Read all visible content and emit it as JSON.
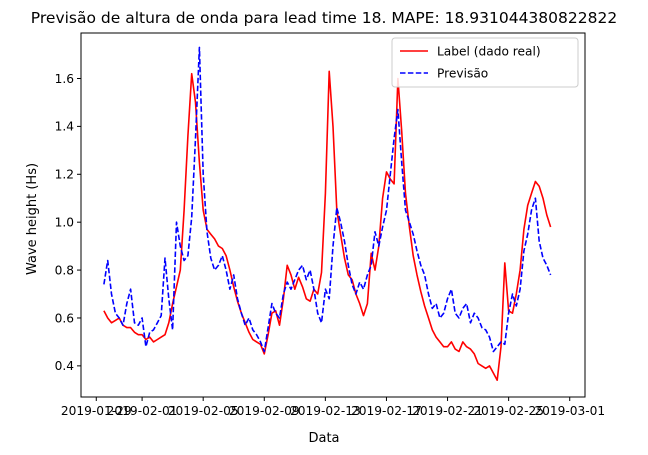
{
  "chart_data": {
    "type": "line",
    "title": "Previsão de altura de onda para lead time 18. MAPE: 18.931044380822822",
    "xlabel": "Data",
    "ylabel": "Wave height (Hs)",
    "x_range": [
      "2019-01-28",
      "2019-03-02"
    ],
    "ylim": [
      0.27,
      1.79
    ],
    "x_ticks": [
      "2019-01-29",
      "2019-02-01",
      "2019-02-05",
      "2019-02-09",
      "2019-02-13",
      "2019-02-17",
      "2019-02-21",
      "2019-02-25",
      "2019-03-01"
    ],
    "y_ticks": [
      0.4,
      0.6,
      0.8,
      1.0,
      1.2,
      1.4,
      1.6
    ],
    "grid": false,
    "legend_position": "top-right",
    "series": [
      {
        "name": "Label (dado real)",
        "color": "#ff0000",
        "style": "solid",
        "points": [
          [
            "2019-01-29 12:00",
            0.63
          ],
          [
            "2019-01-29 18:00",
            0.6
          ],
          [
            "2019-01-30 00:00",
            0.58
          ],
          [
            "2019-01-30 06:00",
            0.59
          ],
          [
            "2019-01-30 12:00",
            0.6
          ],
          [
            "2019-01-30 18:00",
            0.57
          ],
          [
            "2019-01-31 00:00",
            0.56
          ],
          [
            "2019-01-31 06:00",
            0.56
          ],
          [
            "2019-01-31 12:00",
            0.54
          ],
          [
            "2019-01-31 18:00",
            0.53
          ],
          [
            "2019-02-01 00:00",
            0.53
          ],
          [
            "2019-02-01 06:00",
            0.51
          ],
          [
            "2019-02-01 12:00",
            0.52
          ],
          [
            "2019-02-01 18:00",
            0.5
          ],
          [
            "2019-02-02 00:00",
            0.51
          ],
          [
            "2019-02-02 06:00",
            0.52
          ],
          [
            "2019-02-02 12:00",
            0.53
          ],
          [
            "2019-02-02 18:00",
            0.58
          ],
          [
            "2019-02-03 00:00",
            0.66
          ],
          [
            "2019-02-03 06:00",
            0.73
          ],
          [
            "2019-02-03 12:00",
            0.8
          ],
          [
            "2019-02-03 18:00",
            1.05
          ],
          [
            "2019-02-04 00:00",
            1.36
          ],
          [
            "2019-02-04 06:00",
            1.62
          ],
          [
            "2019-02-04 12:00",
            1.5
          ],
          [
            "2019-02-04 18:00",
            1.25
          ],
          [
            "2019-02-05 00:00",
            1.05
          ],
          [
            "2019-02-05 06:00",
            0.97
          ],
          [
            "2019-02-05 12:00",
            0.95
          ],
          [
            "2019-02-05 18:00",
            0.93
          ],
          [
            "2019-02-06 00:00",
            0.9
          ],
          [
            "2019-02-06 06:00",
            0.89
          ],
          [
            "2019-02-06 12:00",
            0.86
          ],
          [
            "2019-02-06 18:00",
            0.8
          ],
          [
            "2019-02-07 00:00",
            0.73
          ],
          [
            "2019-02-07 06:00",
            0.67
          ],
          [
            "2019-02-07 12:00",
            0.62
          ],
          [
            "2019-02-07 18:00",
            0.58
          ],
          [
            "2019-02-08 00:00",
            0.54
          ],
          [
            "2019-02-08 06:00",
            0.51
          ],
          [
            "2019-02-08 12:00",
            0.5
          ],
          [
            "2019-02-08 18:00",
            0.49
          ],
          [
            "2019-02-09 00:00",
            0.45
          ],
          [
            "2019-02-09 06:00",
            0.53
          ],
          [
            "2019-02-09 12:00",
            0.62
          ],
          [
            "2019-02-09 18:00",
            0.63
          ],
          [
            "2019-02-10 00:00",
            0.57
          ],
          [
            "2019-02-10 06:00",
            0.68
          ],
          [
            "2019-02-10 12:00",
            0.82
          ],
          [
            "2019-02-10 18:00",
            0.78
          ],
          [
            "2019-02-11 00:00",
            0.72
          ],
          [
            "2019-02-11 06:00",
            0.77
          ],
          [
            "2019-02-11 12:00",
            0.73
          ],
          [
            "2019-02-11 18:00",
            0.68
          ],
          [
            "2019-02-12 00:00",
            0.67
          ],
          [
            "2019-02-12 06:00",
            0.72
          ],
          [
            "2019-02-12 12:00",
            0.7
          ],
          [
            "2019-02-12 18:00",
            0.79
          ],
          [
            "2019-02-13 00:00",
            1.12
          ],
          [
            "2019-02-13 06:00",
            1.63
          ],
          [
            "2019-02-13 12:00",
            1.4
          ],
          [
            "2019-02-13 18:00",
            1.05
          ],
          [
            "2019-02-14 00:00",
            0.95
          ],
          [
            "2019-02-14 06:00",
            0.85
          ],
          [
            "2019-02-14 12:00",
            0.78
          ],
          [
            "2019-02-14 18:00",
            0.76
          ],
          [
            "2019-02-15 00:00",
            0.7
          ],
          [
            "2019-02-15 06:00",
            0.66
          ],
          [
            "2019-02-15 12:00",
            0.61
          ],
          [
            "2019-02-15 18:00",
            0.66
          ],
          [
            "2019-02-16 00:00",
            0.87
          ],
          [
            "2019-02-16 06:00",
            0.8
          ],
          [
            "2019-02-16 12:00",
            0.9
          ],
          [
            "2019-02-16 18:00",
            1.1
          ],
          [
            "2019-02-17 00:00",
            1.21
          ],
          [
            "2019-02-17 06:00",
            1.18
          ],
          [
            "2019-02-17 12:00",
            1.16
          ],
          [
            "2019-02-17 18:00",
            1.6
          ],
          [
            "2019-02-18 00:00",
            1.38
          ],
          [
            "2019-02-18 06:00",
            1.12
          ],
          [
            "2019-02-18 12:00",
            0.98
          ],
          [
            "2019-02-18 18:00",
            0.86
          ],
          [
            "2019-02-19 00:00",
            0.78
          ],
          [
            "2019-02-19 06:00",
            0.71
          ],
          [
            "2019-02-19 12:00",
            0.65
          ],
          [
            "2019-02-19 18:00",
            0.6
          ],
          [
            "2019-02-20 00:00",
            0.55
          ],
          [
            "2019-02-20 06:00",
            0.52
          ],
          [
            "2019-02-20 12:00",
            0.5
          ],
          [
            "2019-02-20 18:00",
            0.48
          ],
          [
            "2019-02-21 00:00",
            0.48
          ],
          [
            "2019-02-21 06:00",
            0.5
          ],
          [
            "2019-02-21 12:00",
            0.47
          ],
          [
            "2019-02-21 18:00",
            0.46
          ],
          [
            "2019-02-22 00:00",
            0.5
          ],
          [
            "2019-02-22 06:00",
            0.48
          ],
          [
            "2019-02-22 12:00",
            0.47
          ],
          [
            "2019-02-22 18:00",
            0.45
          ],
          [
            "2019-02-23 00:00",
            0.41
          ],
          [
            "2019-02-23 06:00",
            0.4
          ],
          [
            "2019-02-23 12:00",
            0.39
          ],
          [
            "2019-02-23 18:00",
            0.4
          ],
          [
            "2019-02-24 00:00",
            0.37
          ],
          [
            "2019-02-24 06:00",
            0.34
          ],
          [
            "2019-02-24 12:00",
            0.48
          ],
          [
            "2019-02-24 18:00",
            0.83
          ],
          [
            "2019-02-25 00:00",
            0.63
          ],
          [
            "2019-02-25 06:00",
            0.62
          ],
          [
            "2019-02-25 12:00",
            0.7
          ],
          [
            "2019-02-25 18:00",
            0.8
          ],
          [
            "2019-02-26 00:00",
            0.97
          ],
          [
            "2019-02-26 06:00",
            1.07
          ],
          [
            "2019-02-26 12:00",
            1.12
          ],
          [
            "2019-02-26 18:00",
            1.17
          ],
          [
            "2019-02-27 00:00",
            1.15
          ],
          [
            "2019-02-27 06:00",
            1.1
          ],
          [
            "2019-02-27 12:00",
            1.03
          ],
          [
            "2019-02-27 18:00",
            0.98
          ]
        ]
      },
      {
        "name": "Previsão",
        "color": "#0000ff",
        "style": "dashed",
        "points": [
          [
            "2019-01-29 12:00",
            0.74
          ],
          [
            "2019-01-29 18:00",
            0.84
          ],
          [
            "2019-01-30 00:00",
            0.7
          ],
          [
            "2019-01-30 06:00",
            0.62
          ],
          [
            "2019-01-30 12:00",
            0.6
          ],
          [
            "2019-01-30 18:00",
            0.57
          ],
          [
            "2019-01-31 00:00",
            0.66
          ],
          [
            "2019-01-31 06:00",
            0.72
          ],
          [
            "2019-01-31 12:00",
            0.58
          ],
          [
            "2019-01-31 18:00",
            0.57
          ],
          [
            "2019-02-01 00:00",
            0.6
          ],
          [
            "2019-02-01 06:00",
            0.48
          ],
          [
            "2019-02-01 12:00",
            0.54
          ],
          [
            "2019-02-01 18:00",
            0.55
          ],
          [
            "2019-02-02 00:00",
            0.58
          ],
          [
            "2019-02-02 06:00",
            0.61
          ],
          [
            "2019-02-02 12:00",
            0.85
          ],
          [
            "2019-02-02 18:00",
            0.68
          ],
          [
            "2019-02-03 00:00",
            0.55
          ],
          [
            "2019-02-03 06:00",
            1.0
          ],
          [
            "2019-02-03 12:00",
            0.9
          ],
          [
            "2019-02-03 18:00",
            0.84
          ],
          [
            "2019-02-04 00:00",
            0.86
          ],
          [
            "2019-02-04 06:00",
            1.02
          ],
          [
            "2019-02-04 12:00",
            1.35
          ],
          [
            "2019-02-04 18:00",
            1.73
          ],
          [
            "2019-02-05 00:00",
            1.2
          ],
          [
            "2019-02-05 06:00",
            0.96
          ],
          [
            "2019-02-05 12:00",
            0.85
          ],
          [
            "2019-02-05 18:00",
            0.8
          ],
          [
            "2019-02-06 00:00",
            0.82
          ],
          [
            "2019-02-06 06:00",
            0.86
          ],
          [
            "2019-02-06 12:00",
            0.8
          ],
          [
            "2019-02-06 18:00",
            0.72
          ],
          [
            "2019-02-07 00:00",
            0.78
          ],
          [
            "2019-02-07 06:00",
            0.68
          ],
          [
            "2019-02-07 12:00",
            0.62
          ],
          [
            "2019-02-07 18:00",
            0.57
          ],
          [
            "2019-02-08 00:00",
            0.6
          ],
          [
            "2019-02-08 06:00",
            0.55
          ],
          [
            "2019-02-08 12:00",
            0.53
          ],
          [
            "2019-02-08 18:00",
            0.5
          ],
          [
            "2019-02-09 00:00",
            0.46
          ],
          [
            "2019-02-09 06:00",
            0.56
          ],
          [
            "2019-02-09 12:00",
            0.66
          ],
          [
            "2019-02-09 18:00",
            0.62
          ],
          [
            "2019-02-10 00:00",
            0.6
          ],
          [
            "2019-02-10 06:00",
            0.7
          ],
          [
            "2019-02-10 12:00",
            0.75
          ],
          [
            "2019-02-10 18:00",
            0.72
          ],
          [
            "2019-02-11 00:00",
            0.76
          ],
          [
            "2019-02-11 06:00",
            0.8
          ],
          [
            "2019-02-11 12:00",
            0.82
          ],
          [
            "2019-02-11 18:00",
            0.76
          ],
          [
            "2019-02-12 00:00",
            0.8
          ],
          [
            "2019-02-12 06:00",
            0.72
          ],
          [
            "2019-02-12 12:00",
            0.62
          ],
          [
            "2019-02-12 18:00",
            0.58
          ],
          [
            "2019-02-13 00:00",
            0.72
          ],
          [
            "2019-02-13 06:00",
            0.68
          ],
          [
            "2019-02-13 12:00",
            0.9
          ],
          [
            "2019-02-13 18:00",
            1.06
          ],
          [
            "2019-02-14 00:00",
            1.0
          ],
          [
            "2019-02-14 06:00",
            0.92
          ],
          [
            "2019-02-14 12:00",
            0.82
          ],
          [
            "2019-02-14 18:00",
            0.74
          ],
          [
            "2019-02-15 00:00",
            0.7
          ],
          [
            "2019-02-15 06:00",
            0.75
          ],
          [
            "2019-02-15 12:00",
            0.72
          ],
          [
            "2019-02-15 18:00",
            0.78
          ],
          [
            "2019-02-16 00:00",
            0.82
          ],
          [
            "2019-02-16 06:00",
            0.96
          ],
          [
            "2019-02-16 12:00",
            0.9
          ],
          [
            "2019-02-16 18:00",
            0.98
          ],
          [
            "2019-02-17 00:00",
            1.05
          ],
          [
            "2019-02-17 06:00",
            1.2
          ],
          [
            "2019-02-17 12:00",
            1.35
          ],
          [
            "2019-02-17 18:00",
            1.47
          ],
          [
            "2019-02-18 00:00",
            1.25
          ],
          [
            "2019-02-18 06:00",
            1.05
          ],
          [
            "2019-02-18 12:00",
            1.0
          ],
          [
            "2019-02-18 18:00",
            0.95
          ],
          [
            "2019-02-19 00:00",
            0.88
          ],
          [
            "2019-02-19 06:00",
            0.82
          ],
          [
            "2019-02-19 12:00",
            0.78
          ],
          [
            "2019-02-19 18:00",
            0.7
          ],
          [
            "2019-02-20 00:00",
            0.64
          ],
          [
            "2019-02-20 06:00",
            0.66
          ],
          [
            "2019-02-20 12:00",
            0.6
          ],
          [
            "2019-02-20 18:00",
            0.62
          ],
          [
            "2019-02-21 00:00",
            0.68
          ],
          [
            "2019-02-21 06:00",
            0.72
          ],
          [
            "2019-02-21 12:00",
            0.62
          ],
          [
            "2019-02-21 18:00",
            0.6
          ],
          [
            "2019-02-22 00:00",
            0.64
          ],
          [
            "2019-02-22 06:00",
            0.66
          ],
          [
            "2019-02-22 12:00",
            0.58
          ],
          [
            "2019-02-22 18:00",
            0.62
          ],
          [
            "2019-02-23 00:00",
            0.6
          ],
          [
            "2019-02-23 06:00",
            0.56
          ],
          [
            "2019-02-23 12:00",
            0.55
          ],
          [
            "2019-02-23 18:00",
            0.52
          ],
          [
            "2019-02-24 00:00",
            0.46
          ],
          [
            "2019-02-24 06:00",
            0.48
          ],
          [
            "2019-02-24 12:00",
            0.5
          ],
          [
            "2019-02-24 18:00",
            0.49
          ],
          [
            "2019-02-25 00:00",
            0.62
          ],
          [
            "2019-02-25 06:00",
            0.7
          ],
          [
            "2019-02-25 12:00",
            0.65
          ],
          [
            "2019-02-25 18:00",
            0.72
          ],
          [
            "2019-02-26 00:00",
            0.88
          ],
          [
            "2019-02-26 06:00",
            0.95
          ],
          [
            "2019-02-26 12:00",
            1.05
          ],
          [
            "2019-02-26 18:00",
            1.1
          ],
          [
            "2019-02-27 00:00",
            0.92
          ],
          [
            "2019-02-27 06:00",
            0.85
          ],
          [
            "2019-02-27 12:00",
            0.82
          ],
          [
            "2019-02-27 18:00",
            0.78
          ]
        ]
      }
    ]
  }
}
